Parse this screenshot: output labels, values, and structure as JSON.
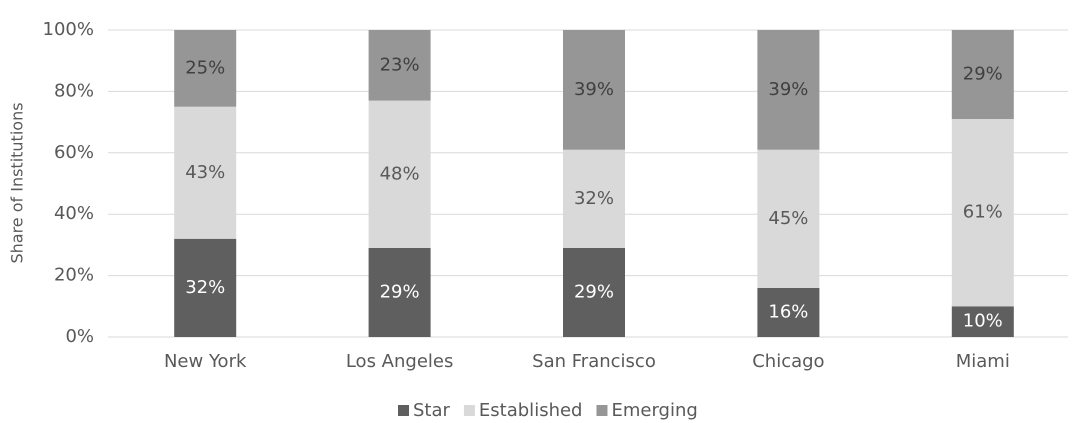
{
  "chart_data": {
    "type": "stacked_bar",
    "ylabel": "Share of Institutions",
    "categories": [
      "New York",
      "Los Angeles",
      "San Francisco",
      "Chicago",
      "Miami"
    ],
    "series": [
      {
        "name": "Star",
        "color": "#5f5f5f",
        "label_color": "#ffffff",
        "values": [
          32,
          29,
          29,
          16,
          10
        ],
        "value_labels": [
          "32%",
          "29%",
          "29%",
          "16%",
          "10%"
        ]
      },
      {
        "name": "Established",
        "color": "#d9d9d9",
        "label_color": "#595959",
        "values": [
          43,
          48,
          32,
          45,
          61
        ],
        "value_labels": [
          "43%",
          "48%",
          "32%",
          "45%",
          "61%"
        ]
      },
      {
        "name": "Emerging",
        "color": "#969696",
        "label_color": "#404040",
        "values": [
          25,
          23,
          39,
          39,
          29
        ],
        "value_labels": [
          "25%",
          "23%",
          "39%",
          "39%",
          "29%"
        ]
      }
    ],
    "ylim": [
      0,
      100
    ],
    "yticks": [
      {
        "value": 0,
        "label": "0%"
      },
      {
        "value": 20,
        "label": "20%"
      },
      {
        "value": 40,
        "label": "40%"
      },
      {
        "value": 60,
        "label": "60%"
      },
      {
        "value": 80,
        "label": "80%"
      },
      {
        "value": 100,
        "label": "100%"
      }
    ],
    "grid": true,
    "legend": "bottom"
  }
}
